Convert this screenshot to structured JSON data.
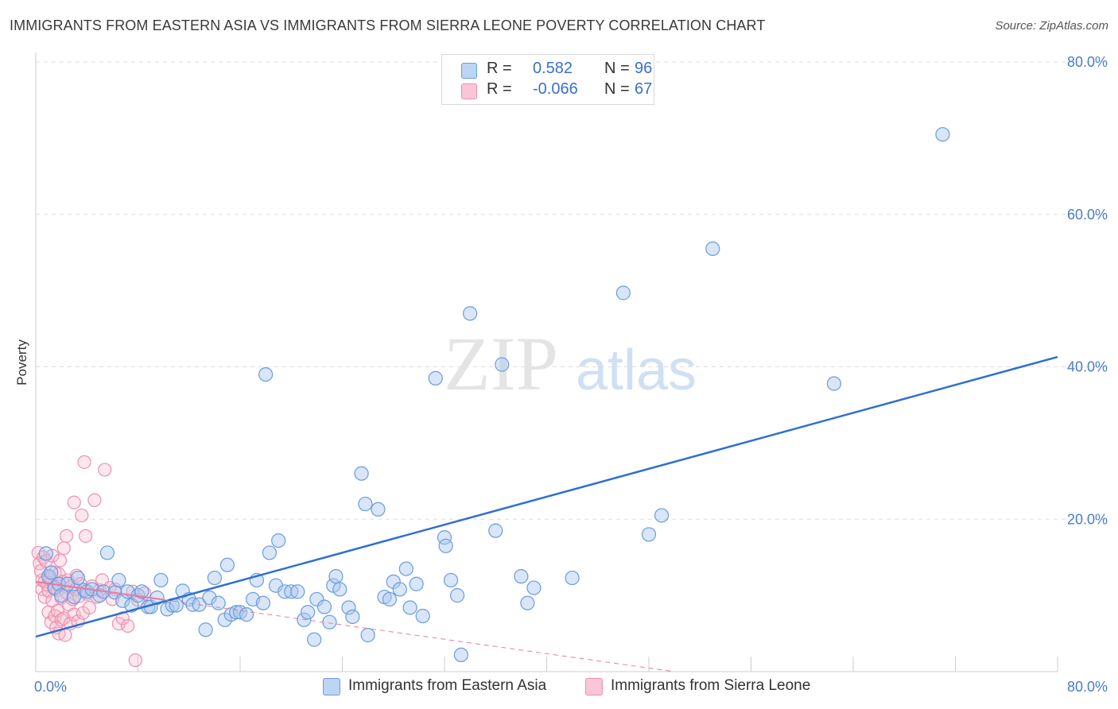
{
  "title": "IMMIGRANTS FROM EASTERN ASIA VS IMMIGRANTS FROM SIERRA LEONE POVERTY CORRELATION CHART",
  "source": "Source: ZipAtlas.com",
  "legend": {
    "rows": [
      {
        "r_label": "R =",
        "r_value": "0.582",
        "n_label": "N =",
        "n_value": "96"
      },
      {
        "r_label": "R =",
        "r_value": "-0.066",
        "n_label": "N =",
        "n_value": "67"
      }
    ]
  },
  "watermark": {
    "zip": "ZIP",
    "atlas": "atlas"
  },
  "colors": {
    "blue_fill": "#a9c8ef",
    "blue_stroke": "#6b9be0",
    "blue_line": "#2f6fd0",
    "pink_fill": "#f6b9cc",
    "pink_stroke": "#ee8fb0",
    "pink_line": "#e87aa0",
    "tick_text": "#4a7cc7",
    "grid": "#dddddd"
  },
  "chart_data": {
    "type": "scatter",
    "title": "IMMIGRANTS FROM EASTERN ASIA VS IMMIGRANTS FROM SIERRA LEONE POVERTY CORRELATION CHART",
    "xlabel": "",
    "ylabel": "Poverty",
    "xlim": [
      0,
      80
    ],
    "ylim": [
      0,
      80
    ],
    "x_tick_labels": [
      "0.0%",
      "80.0%"
    ],
    "y_ticks": [
      20,
      40,
      60,
      80
    ],
    "y_tick_labels": [
      "20.0%",
      "40.0%",
      "60.0%",
      "80.0%"
    ],
    "grid": true,
    "legend_position": "top-center",
    "series": [
      {
        "name": "Immigrants from Eastern Asia",
        "color": "#a9c8ef",
        "trend": {
          "x": [
            0,
            80
          ],
          "y": [
            4.6,
            41.3
          ]
        },
        "points": [
          [
            0.8,
            15.5
          ],
          [
            1.0,
            12.5
          ],
          [
            1.2,
            13.0
          ],
          [
            1.5,
            11.0
          ],
          [
            1.8,
            11.5
          ],
          [
            2.0,
            10.0
          ],
          [
            2.5,
            11.5
          ],
          [
            3.0,
            9.8
          ],
          [
            3.3,
            12.3
          ],
          [
            3.8,
            10.7
          ],
          [
            4.0,
            10.5
          ],
          [
            4.4,
            10.8
          ],
          [
            5.0,
            10.0
          ],
          [
            5.3,
            10.5
          ],
          [
            5.6,
            15.6
          ],
          [
            6.2,
            10.4
          ],
          [
            6.5,
            12.0
          ],
          [
            6.8,
            9.3
          ],
          [
            7.2,
            10.5
          ],
          [
            7.5,
            8.7
          ],
          [
            8.0,
            10.0
          ],
          [
            8.3,
            10.5
          ],
          [
            8.8,
            8.5
          ],
          [
            9.0,
            8.5
          ],
          [
            9.5,
            9.7
          ],
          [
            9.8,
            12.0
          ],
          [
            10.3,
            8.2
          ],
          [
            10.7,
            8.7
          ],
          [
            11.0,
            8.7
          ],
          [
            11.5,
            10.6
          ],
          [
            12.0,
            9.5
          ],
          [
            12.3,
            8.8
          ],
          [
            12.8,
            8.8
          ],
          [
            13.3,
            5.5
          ],
          [
            13.6,
            9.7
          ],
          [
            14.0,
            12.3
          ],
          [
            14.3,
            9.0
          ],
          [
            14.8,
            6.8
          ],
          [
            15.0,
            14.0
          ],
          [
            15.3,
            7.5
          ],
          [
            15.7,
            7.8
          ],
          [
            16.0,
            7.8
          ],
          [
            16.5,
            7.5
          ],
          [
            17.0,
            9.5
          ],
          [
            17.3,
            12.0
          ],
          [
            17.8,
            9.0
          ],
          [
            18.0,
            39.0
          ],
          [
            18.3,
            15.6
          ],
          [
            18.8,
            11.3
          ],
          [
            19.0,
            17.2
          ],
          [
            19.5,
            10.5
          ],
          [
            20.0,
            10.5
          ],
          [
            20.5,
            10.5
          ],
          [
            21.0,
            6.8
          ],
          [
            21.3,
            7.8
          ],
          [
            21.8,
            4.2
          ],
          [
            22.0,
            9.5
          ],
          [
            22.6,
            8.5
          ],
          [
            23.0,
            6.5
          ],
          [
            23.3,
            11.3
          ],
          [
            23.5,
            12.5
          ],
          [
            23.8,
            10.8
          ],
          [
            24.5,
            8.4
          ],
          [
            24.8,
            7.2
          ],
          [
            25.5,
            26.0
          ],
          [
            25.8,
            22.0
          ],
          [
            26.0,
            4.8
          ],
          [
            26.8,
            21.3
          ],
          [
            27.3,
            9.8
          ],
          [
            27.7,
            9.5
          ],
          [
            28.0,
            11.8
          ],
          [
            28.5,
            10.8
          ],
          [
            29.0,
            13.5
          ],
          [
            29.3,
            8.4
          ],
          [
            29.8,
            11.5
          ],
          [
            30.3,
            7.3
          ],
          [
            31.3,
            38.5
          ],
          [
            32.0,
            17.6
          ],
          [
            32.1,
            16.5
          ],
          [
            32.5,
            12.0
          ],
          [
            33.0,
            10.0
          ],
          [
            33.3,
            2.2
          ],
          [
            34.0,
            47.0
          ],
          [
            36.0,
            18.5
          ],
          [
            36.5,
            40.3
          ],
          [
            38.0,
            12.5
          ],
          [
            38.5,
            9.0
          ],
          [
            39.0,
            11.0
          ],
          [
            42.0,
            12.3
          ],
          [
            46.0,
            49.7
          ],
          [
            48.0,
            18.0
          ],
          [
            49.0,
            20.5
          ],
          [
            53.0,
            55.5
          ],
          [
            62.5,
            37.8
          ],
          [
            71.0,
            70.5
          ]
        ]
      },
      {
        "name": "Immigrants from Sierra Leone",
        "color": "#f6b9cc",
        "trend": {
          "x": [
            0,
            50
          ],
          "y": [
            11.8,
            0
          ]
        },
        "points": [
          [
            0.2,
            15.6
          ],
          [
            0.3,
            14.2
          ],
          [
            0.4,
            13.2
          ],
          [
            0.5,
            12.0
          ],
          [
            0.5,
            10.8
          ],
          [
            0.6,
            15.0
          ],
          [
            0.7,
            11.8
          ],
          [
            0.7,
            9.8
          ],
          [
            0.8,
            14.5
          ],
          [
            0.9,
            11.4
          ],
          [
            1.0,
            10.6
          ],
          [
            1.0,
            7.8
          ],
          [
            1.1,
            12.4
          ],
          [
            1.2,
            6.5
          ],
          [
            1.3,
            15.2
          ],
          [
            1.3,
            9.3
          ],
          [
            1.4,
            11.0
          ],
          [
            1.5,
            13.0
          ],
          [
            1.5,
            7.3
          ],
          [
            1.6,
            5.8
          ],
          [
            1.7,
            8.0
          ],
          [
            1.7,
            10.7
          ],
          [
            1.8,
            12.8
          ],
          [
            1.8,
            5.0
          ],
          [
            1.9,
            14.6
          ],
          [
            2.0,
            6.8
          ],
          [
            2.0,
            9.7
          ],
          [
            2.1,
            11.8
          ],
          [
            2.2,
            16.2
          ],
          [
            2.2,
            7.0
          ],
          [
            2.3,
            4.8
          ],
          [
            2.4,
            17.8
          ],
          [
            2.4,
            10.4
          ],
          [
            2.5,
            12.0
          ],
          [
            2.6,
            8.8
          ],
          [
            2.7,
            6.3
          ],
          [
            2.8,
            11.2
          ],
          [
            2.9,
            9.5
          ],
          [
            3.0,
            22.2
          ],
          [
            3.0,
            7.5
          ],
          [
            3.1,
            10.8
          ],
          [
            3.2,
            12.6
          ],
          [
            3.3,
            6.6
          ],
          [
            3.4,
            9.9
          ],
          [
            3.5,
            11.5
          ],
          [
            3.6,
            20.5
          ],
          [
            3.7,
            7.7
          ],
          [
            3.8,
            27.5
          ],
          [
            3.9,
            17.8
          ],
          [
            4.0,
            10.2
          ],
          [
            4.2,
            8.4
          ],
          [
            4.4,
            11.2
          ],
          [
            4.6,
            22.5
          ],
          [
            4.8,
            9.8
          ],
          [
            5.0,
            10.7
          ],
          [
            5.2,
            12.0
          ],
          [
            5.4,
            26.5
          ],
          [
            5.8,
            11.0
          ],
          [
            6.0,
            9.5
          ],
          [
            6.2,
            10.8
          ],
          [
            6.5,
            6.3
          ],
          [
            6.8,
            7.0
          ],
          [
            7.2,
            6.0
          ],
          [
            7.6,
            10.5
          ],
          [
            7.8,
            1.5
          ],
          [
            8.0,
            9.4
          ],
          [
            8.5,
            10.3
          ]
        ]
      }
    ]
  },
  "bottom_legend": [
    {
      "label": "Immigrants from Eastern Asia"
    },
    {
      "label": "Immigrants from Sierra Leone"
    }
  ]
}
